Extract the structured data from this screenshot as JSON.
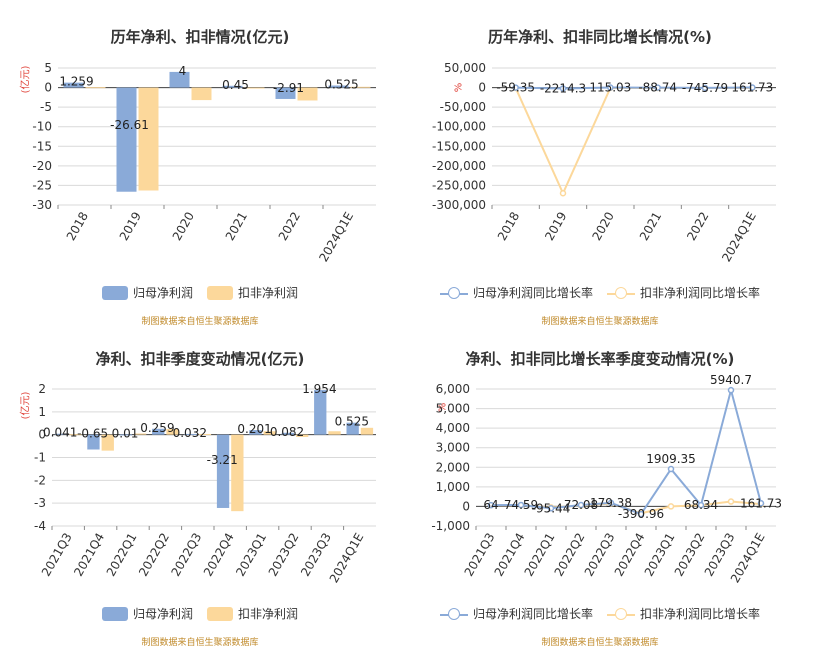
{
  "colors": {
    "primary": "#8aaad8",
    "secondary": "#fcd89b",
    "grid": "#d9d9d9",
    "axis": "#666666",
    "unit": "#e0443b",
    "source": "#c08a2a"
  },
  "source_note": "制图数据来自恒生聚源数据库",
  "chart_data": [
    {
      "type": "bar",
      "title": "历年净利、扣非情况(亿元)",
      "unit_label": "(亿元)",
      "categories": [
        "2018",
        "2019",
        "2020",
        "2021",
        "2022",
        "2024Q1E"
      ],
      "ylim": [
        -30,
        5
      ],
      "yticks": [
        5,
        0,
        -5,
        -10,
        -15,
        -20,
        -25,
        -30
      ],
      "series": [
        {
          "name": "归母净利润",
          "values": [
            1.259,
            -26.61,
            4,
            0.45,
            -2.91,
            0.525
          ],
          "labels": [
            "1.259",
            "-26.61",
            "4",
            "0.45",
            "-2.91",
            "0.525"
          ]
        },
        {
          "name": "扣非净利润",
          "values": [
            0.1,
            -26.3,
            -3.2,
            -0.1,
            -3.3,
            0.2
          ]
        }
      ]
    },
    {
      "type": "line",
      "title": "历年净利、扣非同比增长情况(%)",
      "unit_label": "%",
      "categories": [
        "2018",
        "2019",
        "2020",
        "2021",
        "2022",
        "2024Q1E"
      ],
      "ylim": [
        -300000,
        50000
      ],
      "yticks": [
        50000,
        0,
        -50000,
        -100000,
        -150000,
        -200000,
        -250000,
        -300000
      ],
      "ytick_labels": [
        "50,000",
        "0",
        "-50,000",
        "-100,000",
        "-150,000",
        "-200,000",
        "-250,000",
        "-300,000"
      ],
      "series": [
        {
          "name": "归母净利润同比增长率",
          "values": [
            -59.35,
            -2214.3,
            115.03,
            -88.74,
            -745.79,
            161.73
          ],
          "labels": [
            "-59.35",
            "-2214.3",
            "115.03",
            "-88.74",
            "-745.79",
            "161.73"
          ]
        },
        {
          "name": "扣非净利润同比增长率",
          "values": [
            -1000,
            -270000,
            -1000,
            -1000,
            -1000,
            -1000
          ]
        }
      ]
    },
    {
      "type": "bar",
      "title": "净利、扣非季度变动情况(亿元)",
      "unit_label": "(亿元)",
      "categories": [
        "2021Q3",
        "2021Q4",
        "2022Q1",
        "2022Q2",
        "2022Q3",
        "2022Q4",
        "2023Q1",
        "2023Q2",
        "2023Q3",
        "2024Q1E"
      ],
      "ylim": [
        -4,
        2
      ],
      "yticks": [
        2,
        1,
        0,
        -1,
        -2,
        -3,
        -4
      ],
      "series": [
        {
          "name": "归母净利润",
          "values": [
            0.041,
            -0.65,
            0.01,
            0.259,
            0.032,
            -3.21,
            0.201,
            0.082,
            1.954,
            0.525
          ],
          "labels": [
            "0.041",
            "-0.65",
            "0.01",
            "0.259",
            "0.032",
            "-3.21",
            "0.201",
            "0.082",
            "1.954",
            "0.525"
          ]
        },
        {
          "name": "扣非净利润",
          "values": [
            0.02,
            -0.7,
            0.05,
            0.25,
            0.03,
            -3.35,
            0.15,
            -0.1,
            0.15,
            0.3
          ]
        }
      ]
    },
    {
      "type": "line",
      "title": "净利、扣非同比增长率季度变动情况(%)",
      "unit_label": "%",
      "categories": [
        "2021Q3",
        "2021Q4",
        "2022Q1",
        "2022Q2",
        "2022Q3",
        "2022Q4",
        "2023Q1",
        "2023Q2",
        "2023Q3",
        "2024Q1E"
      ],
      "ylim": [
        -1000,
        6000
      ],
      "yticks": [
        6000,
        5000,
        4000,
        3000,
        2000,
        1000,
        0,
        -1000
      ],
      "ytick_labels": [
        "6,000",
        "5,000",
        "4,000",
        "3,000",
        "2,000",
        "1,000",
        "0",
        "-1,000"
      ],
      "series": [
        {
          "name": "归母净利润同比增长率",
          "values": [
            64,
            74.59,
            -95.44,
            72.08,
            179.38,
            -390.96,
            1909.35,
            68.34,
            5940.7,
            161.73
          ],
          "labels": [
            "64",
            "74.59",
            "-95.44",
            "72.08",
            "179.38",
            "-390.96",
            "1909.35",
            "68.34",
            "5940.7",
            "161.73"
          ]
        },
        {
          "name": "扣非净利润同比增长率",
          "values": [
            60,
            60,
            -50,
            40,
            150,
            -350,
            0,
            60,
            250,
            120
          ]
        }
      ]
    }
  ]
}
